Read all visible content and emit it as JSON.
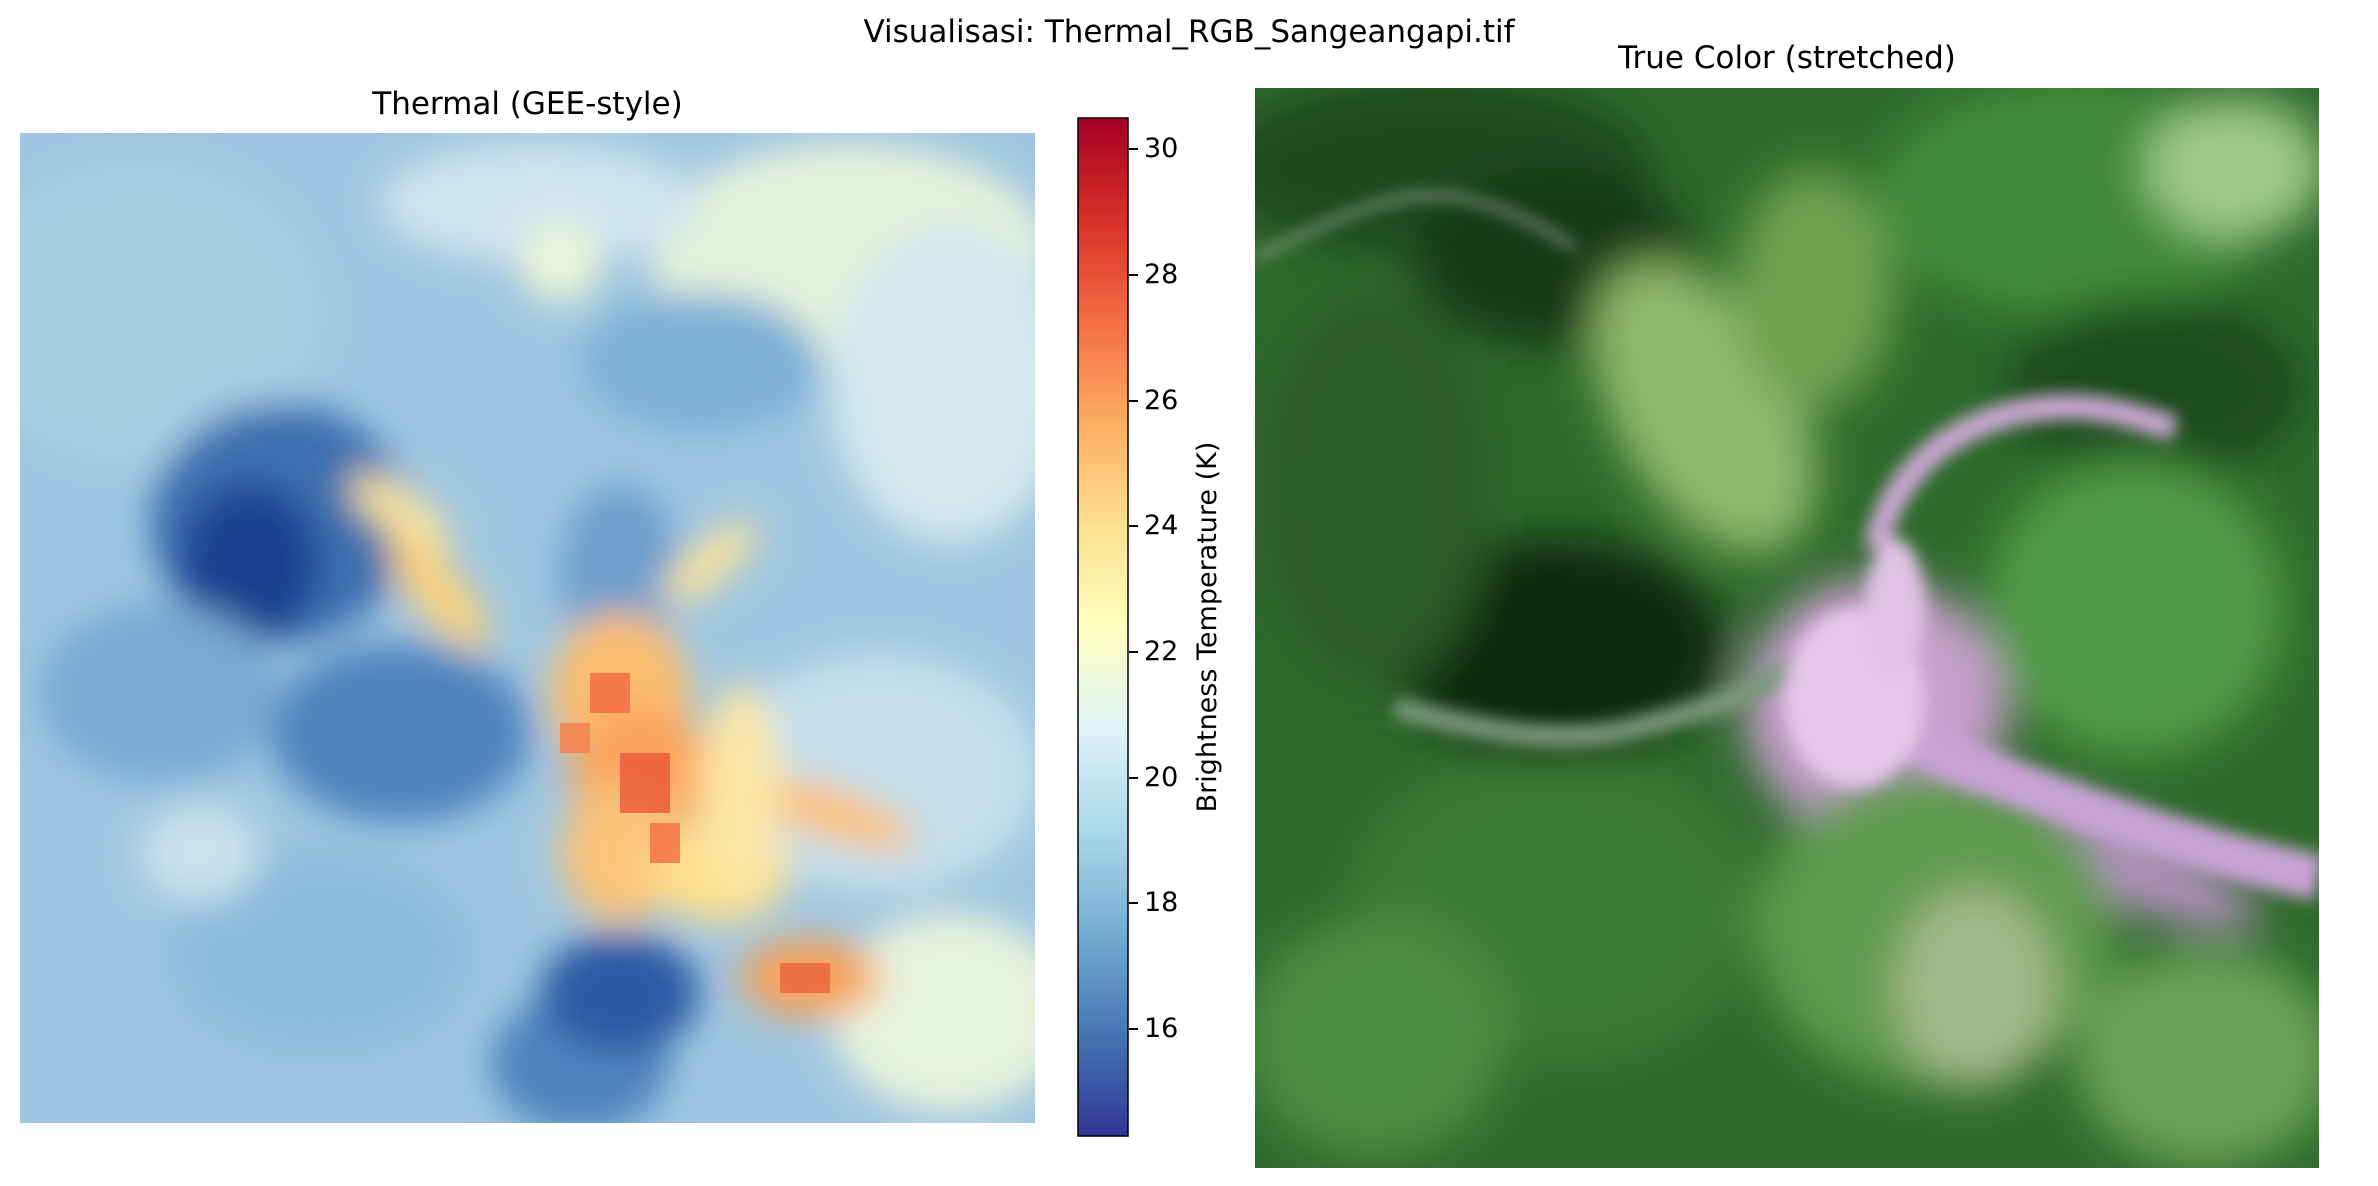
{
  "suptitle": "Visualisasi: Thermal_RGB_Sangeangapi.tif",
  "chart_data": [
    {
      "type": "heatmap",
      "title": "Thermal (GEE-style)",
      "colormap": "RdYlBu_r",
      "colorbar": {
        "label": "Brightness Temperature (K)",
        "range": [
          14.3,
          30.5
        ],
        "ticks": [
          16,
          18,
          20,
          22,
          24,
          26,
          28,
          30
        ]
      },
      "axes": "off"
    },
    {
      "type": "image",
      "title": "True Color (stretched)",
      "axes": "off"
    }
  ]
}
